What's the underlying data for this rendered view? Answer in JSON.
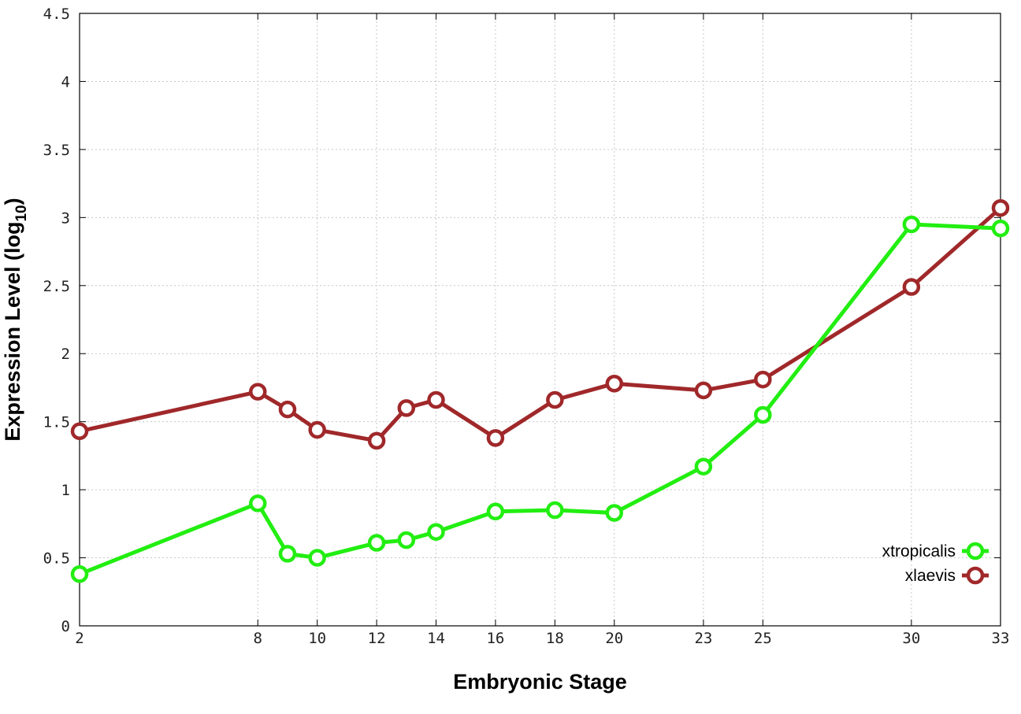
{
  "chart_data": {
    "type": "line",
    "title": "",
    "xlabel": "Embryonic Stage",
    "ylabel": "Expression Level (log",
    "ylabel_sub": "10",
    "ylabel_close": ")",
    "x": [
      2,
      8,
      9,
      10,
      12,
      13,
      14,
      16,
      18,
      20,
      23,
      25,
      30,
      33
    ],
    "xticks": [
      2,
      8,
      10,
      12,
      14,
      16,
      18,
      20,
      23,
      25,
      30,
      33
    ],
    "xlim": [
      2,
      33
    ],
    "ylim": [
      0,
      4.5
    ],
    "yticks": [
      "0",
      "0.5",
      "1",
      "1.5",
      "2",
      "2.5",
      "3",
      "3.5",
      "4",
      "4.5"
    ],
    "grid": true,
    "legend_position": "bottom-right",
    "series": [
      {
        "name": "xtropicalis",
        "color": "#22ee11",
        "marker": "open-circle",
        "values": [
          0.38,
          0.9,
          0.53,
          0.5,
          0.61,
          0.63,
          0.69,
          0.84,
          0.85,
          0.83,
          1.17,
          1.55,
          2.95,
          2.92
        ]
      },
      {
        "name": "xlaevis",
        "color": "#a0282a",
        "marker": "open-circle",
        "values": [
          1.43,
          1.72,
          1.59,
          1.44,
          1.36,
          1.6,
          1.66,
          1.38,
          1.66,
          1.78,
          1.73,
          1.81,
          2.49,
          3.07
        ]
      }
    ]
  }
}
